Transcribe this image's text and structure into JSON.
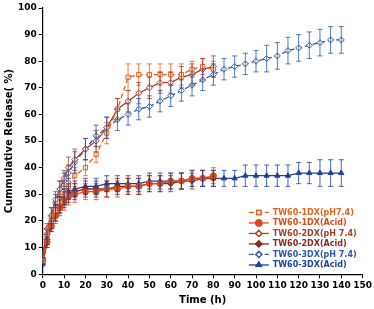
{
  "chart_data": {
    "type": "line",
    "x_label": "Time (h)",
    "y_label": "Cummulative Release( %)",
    "xlim": [
      0,
      150
    ],
    "xticks": [
      0,
      10,
      20,
      30,
      40,
      50,
      60,
      70,
      80,
      90,
      100,
      110,
      120,
      130,
      140,
      150
    ],
    "ylim": [
      0,
      100
    ],
    "yticks": [
      0,
      10,
      20,
      30,
      40,
      50,
      60,
      70,
      80,
      90,
      100
    ],
    "grid": false,
    "legend": "lower right",
    "series": [
      {
        "name": "TW60-1DX(pH7.4)",
        "color": "#e8601c",
        "marker": "square-open",
        "line_style": "dashed",
        "x": [
          0,
          2,
          4,
          6,
          8,
          10,
          12,
          15,
          20,
          25,
          30,
          35,
          40,
          45,
          50,
          55,
          60,
          65,
          70,
          75,
          80
        ],
        "values": [
          5,
          15,
          20,
          24,
          27,
          30,
          33,
          37,
          40,
          45,
          53,
          62,
          74,
          75,
          75,
          75,
          75,
          75,
          77,
          78,
          77
        ],
        "errors": [
          1,
          2,
          2,
          2,
          3,
          3,
          3,
          3,
          3,
          3,
          4,
          4,
          5,
          4,
          4,
          4,
          4,
          4,
          3,
          3,
          3
        ]
      },
      {
        "name": "TW60-1DX(Acid)",
        "color": "#d94a1e",
        "marker": "circle",
        "line_style": "solid",
        "x": [
          0,
          2,
          4,
          6,
          8,
          10,
          12,
          15,
          20,
          25,
          30,
          35,
          40,
          45,
          50,
          55,
          60,
          65,
          70,
          75,
          80
        ],
        "values": [
          5,
          12,
          18,
          22,
          25,
          27,
          29,
          30,
          31,
          31,
          32,
          32,
          33,
          33,
          34,
          34,
          35,
          35,
          36,
          36,
          37
        ],
        "errors": [
          1,
          2,
          2,
          3,
          3,
          3,
          3,
          3,
          3,
          3,
          3,
          3,
          3,
          3,
          3,
          3,
          3,
          3,
          3,
          3,
          3
        ]
      },
      {
        "name": "TW60-2DX(pH 7.4)",
        "color": "#a3402c",
        "marker": "diamond-open",
        "line_style": "solid",
        "x": [
          0,
          2,
          4,
          6,
          8,
          10,
          12,
          15,
          20,
          25,
          30,
          35,
          40,
          45,
          50,
          55,
          60,
          65,
          70,
          75,
          80
        ],
        "values": [
          6,
          17,
          22,
          28,
          32,
          36,
          40,
          43,
          47,
          50,
          55,
          62,
          65,
          68,
          70,
          72,
          72,
          74,
          75,
          77,
          78
        ],
        "errors": [
          2,
          2,
          3,
          3,
          3,
          3,
          4,
          4,
          4,
          4,
          4,
          4,
          4,
          4,
          4,
          4,
          4,
          4,
          4,
          4,
          4
        ]
      },
      {
        "name": "TW60-2DX(Acid)",
        "color": "#8b2a1c",
        "marker": "diamond",
        "line_style": "solid",
        "x": [
          0,
          2,
          4,
          6,
          8,
          10,
          12,
          15,
          20,
          25,
          30,
          35,
          40,
          45,
          50,
          55,
          60,
          65,
          70,
          75,
          80
        ],
        "values": [
          5,
          13,
          19,
          23,
          26,
          28,
          30,
          31,
          32,
          32,
          32,
          33,
          33,
          33,
          34,
          34,
          34,
          35,
          35,
          36,
          36
        ],
        "errors": [
          1,
          2,
          2,
          3,
          3,
          3,
          3,
          3,
          3,
          3,
          3,
          3,
          3,
          3,
          3,
          3,
          3,
          3,
          3,
          3,
          3
        ]
      },
      {
        "name": "TW60-3DX(pH 7.4)",
        "color": "#2a56a8",
        "marker": "diamond-open",
        "line_style": "dashed",
        "x": [
          0,
          2,
          4,
          6,
          8,
          10,
          12,
          15,
          20,
          25,
          30,
          35,
          40,
          45,
          50,
          55,
          60,
          65,
          70,
          75,
          80,
          85,
          90,
          95,
          100,
          105,
          110,
          115,
          120,
          125,
          130,
          135,
          140
        ],
        "values": [
          8,
          15,
          22,
          27,
          32,
          35,
          38,
          42,
          47,
          52,
          55,
          58,
          60,
          62,
          63,
          65,
          67,
          69,
          71,
          73,
          75,
          77,
          78,
          79,
          80,
          81,
          82,
          84,
          85,
          86,
          87,
          88,
          88
        ],
        "errors": [
          2,
          2,
          3,
          3,
          3,
          3,
          3,
          4,
          4,
          4,
          4,
          4,
          4,
          4,
          4,
          4,
          4,
          4,
          4,
          4,
          4,
          4,
          4,
          4,
          4,
          5,
          5,
          5,
          5,
          5,
          5,
          5,
          5
        ]
      },
      {
        "name": "TW60-3DX(Acid)",
        "color": "#1f3f9c",
        "marker": "triangle",
        "line_style": "solid",
        "x": [
          0,
          2,
          4,
          6,
          8,
          10,
          12,
          15,
          20,
          25,
          30,
          35,
          40,
          45,
          50,
          55,
          60,
          65,
          70,
          75,
          80,
          85,
          90,
          95,
          100,
          105,
          110,
          115,
          120,
          125,
          130,
          135,
          140
        ],
        "values": [
          4,
          12,
          18,
          23,
          26,
          29,
          31,
          32,
          33,
          33,
          34,
          34,
          34,
          34,
          35,
          35,
          35,
          35,
          36,
          36,
          36,
          36,
          36,
          37,
          37,
          37,
          37,
          37,
          38,
          38,
          38,
          38,
          38
        ],
        "errors": [
          1,
          2,
          2,
          3,
          3,
          3,
          3,
          3,
          3,
          3,
          3,
          3,
          3,
          3,
          3,
          3,
          3,
          3,
          3,
          3,
          3,
          3,
          3,
          4,
          4,
          4,
          4,
          4,
          4,
          4,
          5,
          5,
          5
        ]
      }
    ]
  }
}
